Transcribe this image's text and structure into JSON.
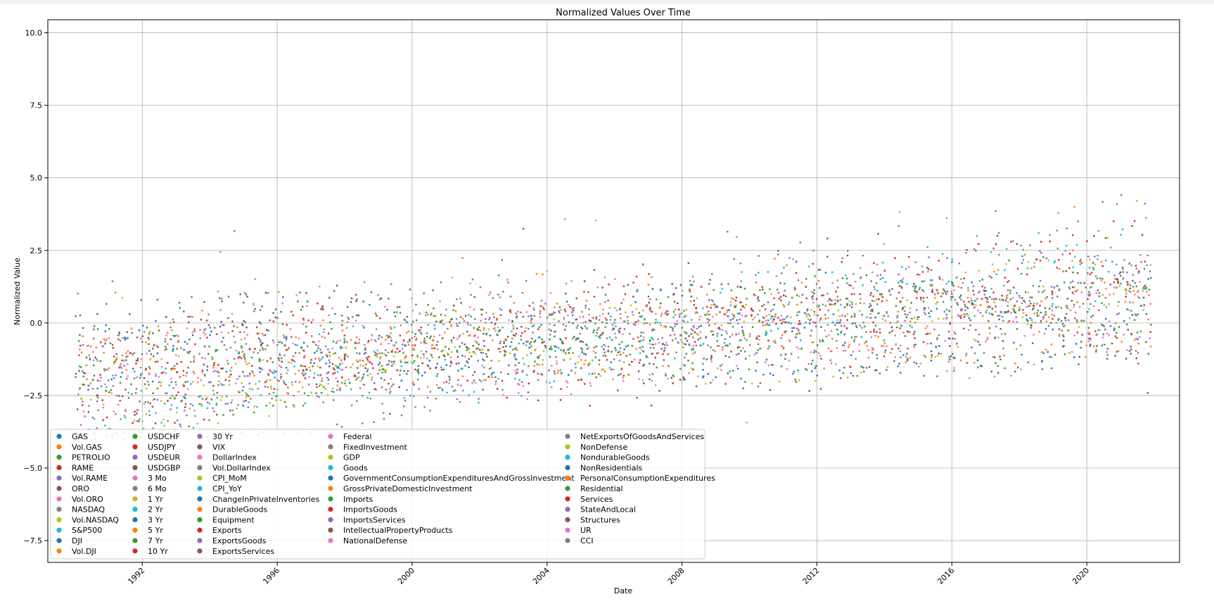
{
  "chart_data": {
    "type": "scatter",
    "title": "Normalized Values Over Time",
    "xlabel": "Date",
    "ylabel": "Normalized Value",
    "xlim": [
      1989.2,
      2022.75
    ],
    "ylim": [
      -8.25,
      10.45
    ],
    "x_ticks": [
      1992,
      1996,
      2000,
      2004,
      2008,
      2012,
      2016,
      2020
    ],
    "x_tick_labels": [
      "1992",
      "1996",
      "2000",
      "2004",
      "2008",
      "2012",
      "2016",
      "2020"
    ],
    "y_ticks": [
      -7.5,
      -5.0,
      -2.5,
      0.0,
      2.5,
      5.0,
      7.5,
      10.0
    ],
    "y_tick_labels": [
      "−7.5",
      "−5.0",
      "−2.5",
      "0.0",
      "2.5",
      "5.0",
      "7.5",
      "10.0"
    ],
    "grid": true,
    "legend_position": "lower-left",
    "legend_columns": 5,
    "series": [
      {
        "name": "GAS",
        "color": "#1f77b4"
      },
      {
        "name": "Vol.GAS",
        "color": "#ff7f0e"
      },
      {
        "name": "PETROLIO",
        "color": "#2ca02c"
      },
      {
        "name": "RAME",
        "color": "#d62728"
      },
      {
        "name": "Vol.RAME",
        "color": "#9467bd"
      },
      {
        "name": "ORO",
        "color": "#8c564b"
      },
      {
        "name": "Vol.ORO",
        "color": "#e377c2"
      },
      {
        "name": "NASDAQ",
        "color": "#7f7f7f"
      },
      {
        "name": "Vol.NASDAQ",
        "color": "#bcbd22"
      },
      {
        "name": "S&P500",
        "color": "#17becf"
      },
      {
        "name": "DJI",
        "color": "#1f77b4"
      },
      {
        "name": "Vol.DJI",
        "color": "#ff7f0e"
      },
      {
        "name": "USDCHF",
        "color": "#2ca02c"
      },
      {
        "name": "USDJPY",
        "color": "#d62728"
      },
      {
        "name": "USDEUR",
        "color": "#9467bd"
      },
      {
        "name": "USDGBP",
        "color": "#8c564b"
      },
      {
        "name": "3 Mo",
        "color": "#e377c2"
      },
      {
        "name": "6 Mo",
        "color": "#7f7f7f"
      },
      {
        "name": "1 Yr",
        "color": "#bcbd22"
      },
      {
        "name": "2 Yr",
        "color": "#17becf"
      },
      {
        "name": "3 Yr",
        "color": "#1f77b4"
      },
      {
        "name": "5 Yr",
        "color": "#ff7f0e"
      },
      {
        "name": "7 Yr",
        "color": "#2ca02c"
      },
      {
        "name": "10 Yr",
        "color": "#d62728"
      },
      {
        "name": "30 Yr",
        "color": "#9467bd"
      },
      {
        "name": "VIX",
        "color": "#8c564b"
      },
      {
        "name": "DollarIndex",
        "color": "#e377c2"
      },
      {
        "name": "Vol.DollarIndex",
        "color": "#7f7f7f"
      },
      {
        "name": "CPI_MoM",
        "color": "#bcbd22"
      },
      {
        "name": "CPI_YoY",
        "color": "#17becf"
      },
      {
        "name": "ChangeInPrivateInventories",
        "color": "#1f77b4"
      },
      {
        "name": "DurableGoods",
        "color": "#ff7f0e"
      },
      {
        "name": "Equipment",
        "color": "#2ca02c"
      },
      {
        "name": "Exports",
        "color": "#d62728"
      },
      {
        "name": "ExportsGoods",
        "color": "#9467bd"
      },
      {
        "name": "ExportsServices",
        "color": "#8c564b"
      },
      {
        "name": "Federal",
        "color": "#e377c2"
      },
      {
        "name": "FixedInvestment",
        "color": "#7f7f7f"
      },
      {
        "name": "GDP",
        "color": "#bcbd22"
      },
      {
        "name": "Goods",
        "color": "#17becf"
      },
      {
        "name": "GovernmentConsumptionExpendituresAndGrossInvestment",
        "color": "#1f77b4"
      },
      {
        "name": "GrossPrivateDomesticInvestment",
        "color": "#ff7f0e"
      },
      {
        "name": "Imports",
        "color": "#2ca02c"
      },
      {
        "name": "ImportsGoods",
        "color": "#d62728"
      },
      {
        "name": "ImportsServices",
        "color": "#9467bd"
      },
      {
        "name": "IntellectualPropertyProducts",
        "color": "#8c564b"
      },
      {
        "name": "NationalDefense",
        "color": "#e377c2"
      },
      {
        "name": "NetExportsOfGoodsAndServices",
        "color": "#7f7f7f"
      },
      {
        "name": "NonDefense",
        "color": "#bcbd22"
      },
      {
        "name": "NondurableGoods",
        "color": "#17becf"
      },
      {
        "name": "NonResidentials",
        "color": "#1f77b4"
      },
      {
        "name": "PersonalConsumptionExpenditures",
        "color": "#ff7f0e"
      },
      {
        "name": "Residential",
        "color": "#2ca02c"
      },
      {
        "name": "Services",
        "color": "#d62728"
      },
      {
        "name": "StateAndLocal",
        "color": "#9467bd"
      },
      {
        "name": "Structures",
        "color": "#8c564b"
      },
      {
        "name": "UR",
        "color": "#e377c2"
      },
      {
        "name": "CCI",
        "color": "#7f7f7f"
      }
    ]
  }
}
